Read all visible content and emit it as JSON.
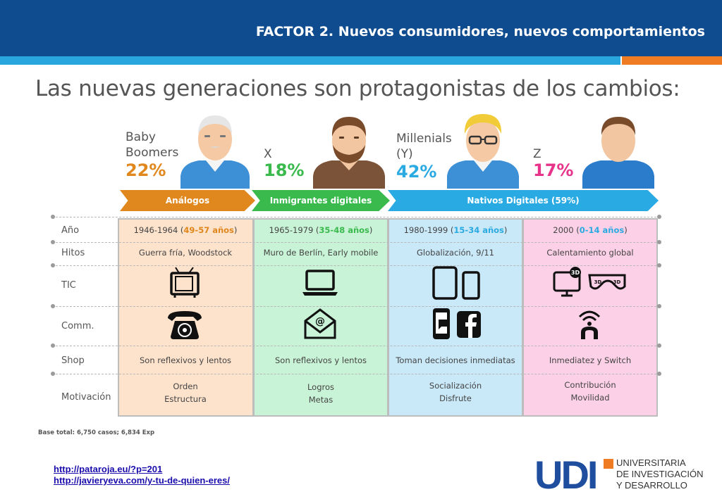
{
  "header": {
    "title": "FACTOR  2. Nuevos consumidores, nuevos comportamientos",
    "colors": {
      "bar": "#0e4b8f",
      "stripe_blue": "#2aa6df",
      "stripe_orange": "#ef7b22"
    }
  },
  "infographic": {
    "heading": "Las nuevas generaciones son protagonistas de los cambios:",
    "generations": [
      {
        "name": "Baby\nBoomers",
        "percent": "22%",
        "color": "#e0871d"
      },
      {
        "name": "X",
        "percent": "18%",
        "color": "#3aba4d"
      },
      {
        "name": "Millenials\n(Y)",
        "percent": "42%",
        "color": "#2aaae2"
      },
      {
        "name": "Z",
        "percent": "17%",
        "color": "#e8338b"
      }
    ],
    "arrows": [
      {
        "label": "Análogos",
        "color": "#e0871d"
      },
      {
        "label": "Inmigrantes digitales",
        "color": "#3aba4d"
      },
      {
        "label": "Nativos Digitales (59%)",
        "color": "#2aaae2"
      }
    ],
    "row_labels": [
      "Año",
      "Hitos",
      "TIC",
      "Comm.",
      "Shop",
      "Motivación"
    ],
    "years": [
      {
        "range": "1946-1964 (",
        "ages": "49-57 años",
        "close": ")",
        "color": "#e0871d"
      },
      {
        "range": "1965-1979 (",
        "ages": "35-48 años",
        "close": ")",
        "color": "#3aba4d"
      },
      {
        "range": "1980-1999 (",
        "ages": "15-34 años",
        "close": ")",
        "color": "#2aaae2"
      },
      {
        "range": "2000 (",
        "ages": "0-14 años",
        "close": ")",
        "color": "#2aaae2"
      }
    ],
    "hitos": [
      "Guerra fría, Woodstock",
      "Muro de Berlín, Early mobile",
      "Globalización, 9/11",
      "Calentamiento global"
    ],
    "tic_icons": [
      "tv-icon",
      "laptop-icon",
      "tablet-phone-icon",
      "3d-tv-glasses-icon"
    ],
    "comm_icons": [
      "rotary-phone-icon",
      "email-icon",
      "sms-facebook-icon",
      "wifi-person-icon"
    ],
    "shop": [
      "Son reflexivos y lentos",
      "Son reflexivos y lentos",
      "Toman decisiones inmediatas",
      "Inmediatez y Switch"
    ],
    "motivacion": [
      {
        "line1": "Orden",
        "line2": "Estructura"
      },
      {
        "line1": "Logros",
        "line2": "Metas"
      },
      {
        "line1": "Socialización",
        "line2": "Disfrute"
      },
      {
        "line1": "Contribución",
        "line2": "Movilidad"
      }
    ],
    "base_note": "Base total: 6,750 casos;  6,834 Exp"
  },
  "links": [
    "http://pataroja.eu/?p=201",
    "http://javieryeva.com/y-tu-de-quien-eres/"
  ],
  "logo": {
    "letters": "UDI",
    "text": "UNIVERSITARIA\nDE INVESTIGACIÓN\nY DESARROLLO"
  }
}
